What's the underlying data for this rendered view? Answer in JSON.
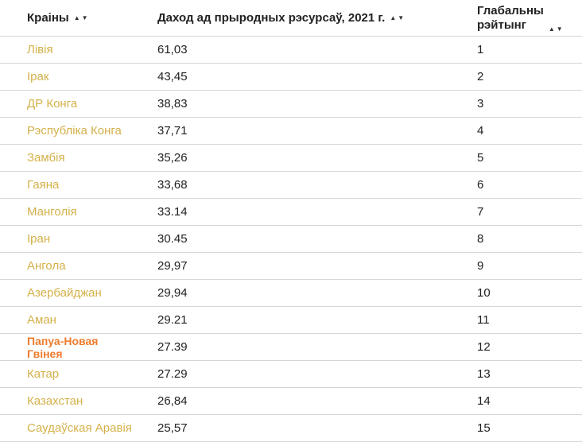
{
  "header": {
    "country": "Краіны",
    "income": "Даход ад прыродных рэсурсаў, 2021 г.",
    "rank_line1": "Глабальны",
    "rank_line2": "рэйтынг",
    "sort_up": "▲",
    "sort_down": "▼"
  },
  "rows": [
    {
      "country": "Лівія",
      "value": "61,03",
      "rank": "1"
    },
    {
      "country": "Ірак",
      "value": "43,45",
      "rank": "2"
    },
    {
      "country": "ДР Конга",
      "value": "38,83",
      "rank": "3"
    },
    {
      "country": "Рэспубліка Конга",
      "value": "37,71",
      "rank": "4"
    },
    {
      "country": "Замбія",
      "value": "35,26",
      "rank": "5"
    },
    {
      "country": "Гаяна",
      "value": "33,68",
      "rank": "6"
    },
    {
      "country": "Манголія",
      "value": "33.14",
      "rank": "7"
    },
    {
      "country": "Іран",
      "value": "30.45",
      "rank": "8"
    },
    {
      "country": "Ангола",
      "value": "29,97",
      "rank": "9"
    },
    {
      "country": "Азербайджан",
      "value": "29,94",
      "rank": "10"
    },
    {
      "country": "Аман",
      "value": "29.21",
      "rank": "11"
    },
    {
      "country": "Папуа-Новая Гвінея",
      "value": "27.39",
      "rank": "12"
    },
    {
      "country": "Катар",
      "value": "27.29",
      "rank": "13"
    },
    {
      "country": "Казахстан",
      "value": "26,84",
      "rank": "14"
    },
    {
      "country": "Саудаўская Аравія",
      "value": "25,57",
      "rank": "15"
    }
  ],
  "colors": {
    "country_link": "#d4b14a",
    "country_highlight": "#ee7b2c",
    "text": "#222222",
    "divider": "#d6d6d6"
  }
}
